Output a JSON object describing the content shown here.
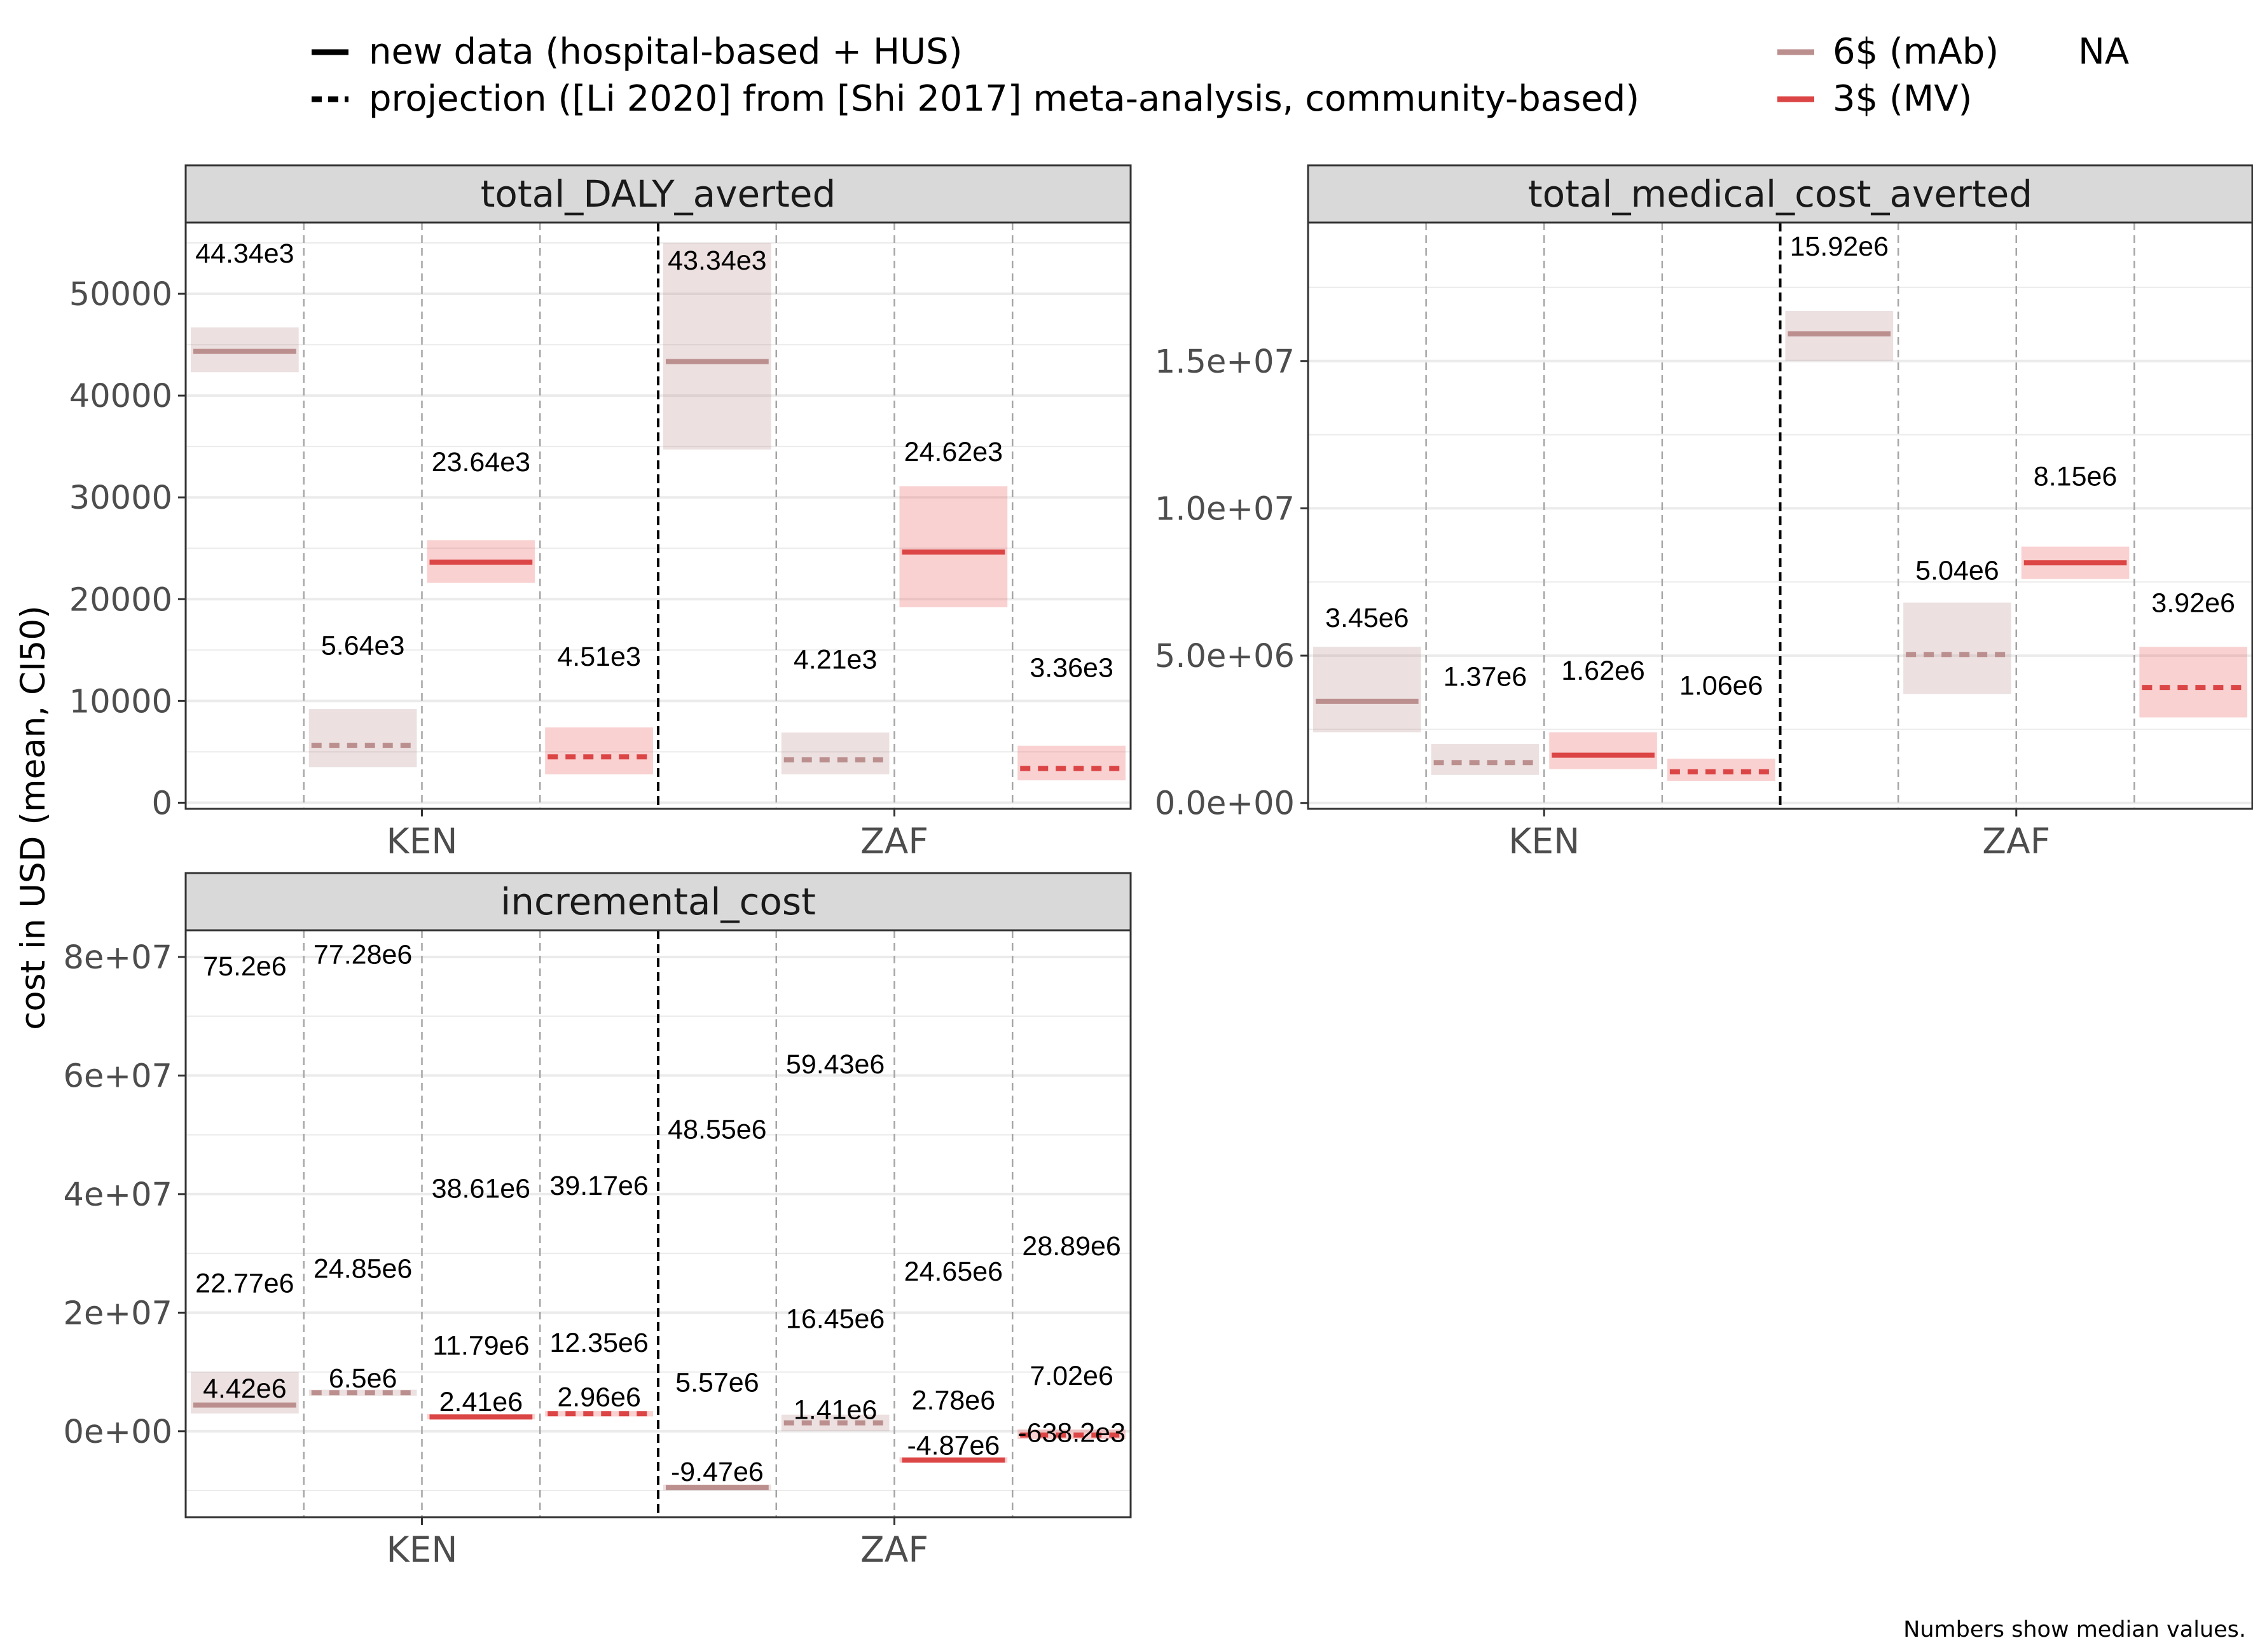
{
  "legend": {
    "linetype": [
      {
        "label": "new data (hospital-based + HUS)",
        "style": "solid"
      },
      {
        "label": "projection ([Li 2020] from [Shi 2017] meta-analysis, community-based)",
        "style": "dashed"
      }
    ],
    "color": [
      {
        "label": "6$ (mAb)",
        "color": "#bc8f8f"
      },
      {
        "label": "3$ (MV)",
        "color": "#dc4545"
      }
    ],
    "extra": "NA"
  },
  "colors": {
    "mAb": "#bc8f8f",
    "MV": "#dc4545",
    "strip_bg": "#d9d9d9",
    "grid": "#ebebeb",
    "divider": "#a6a6a6"
  },
  "ylabel": "cost in USD (mean, CI50)",
  "caption": "Numbers show median values.",
  "chart_data": [
    {
      "type": "crossbar",
      "title": "total_DALY_averted",
      "categories": [
        "KEN",
        "ZAF"
      ],
      "ylim": [
        -600,
        57000
      ],
      "yticks": [
        0,
        10000,
        20000,
        30000,
        40000,
        50000
      ],
      "yticklabels": [
        "0",
        "10000",
        "20000",
        "30000",
        "40000",
        "50000"
      ],
      "grid": true,
      "series": [
        {
          "country": "KEN",
          "slot": 0,
          "group": "mAb",
          "linetype": "solid",
          "mean": 44340,
          "lo": 42300,
          "hi": 46700,
          "label": "44.34e3",
          "label_y": 54000
        },
        {
          "country": "KEN",
          "slot": 1,
          "group": "mAb",
          "linetype": "dashed",
          "mean": 5640,
          "lo": 3500,
          "hi": 9200,
          "label": "5.64e3",
          "label_y": 15500
        },
        {
          "country": "KEN",
          "slot": 2,
          "group": "MV",
          "linetype": "solid",
          "mean": 23640,
          "lo": 21600,
          "hi": 25800,
          "label": "23.64e3",
          "label_y": 33500
        },
        {
          "country": "KEN",
          "slot": 3,
          "group": "MV",
          "linetype": "dashed",
          "mean": 4510,
          "lo": 2800,
          "hi": 7400,
          "label": "4.51e3",
          "label_y": 14400
        },
        {
          "country": "ZAF",
          "slot": 0,
          "group": "mAb",
          "linetype": "solid",
          "mean": 43340,
          "lo": 34700,
          "hi": 55000,
          "label": "43.34e3",
          "label_y": 53300
        },
        {
          "country": "ZAF",
          "slot": 1,
          "group": "mAb",
          "linetype": "dashed",
          "mean": 4210,
          "lo": 2800,
          "hi": 6900,
          "label": "4.21e3",
          "label_y": 14100
        },
        {
          "country": "ZAF",
          "slot": 2,
          "group": "MV",
          "linetype": "solid",
          "mean": 24620,
          "lo": 19200,
          "hi": 31100,
          "label": "24.62e3",
          "label_y": 34500
        },
        {
          "country": "ZAF",
          "slot": 3,
          "group": "MV",
          "linetype": "dashed",
          "mean": 3360,
          "lo": 2200,
          "hi": 5600,
          "label": "3.36e3",
          "label_y": 13300
        }
      ]
    },
    {
      "type": "crossbar",
      "title": "total_medical_cost_averted",
      "categories": [
        "KEN",
        "ZAF"
      ],
      "ylim": [
        -200000,
        19700000
      ],
      "yticks": [
        0,
        5000000,
        10000000,
        15000000
      ],
      "yticklabels": [
        "0.0e+00",
        "5.0e+06",
        "1.0e+07",
        "1.5e+07"
      ],
      "grid": true,
      "series": [
        {
          "country": "KEN",
          "slot": 0,
          "group": "mAb",
          "linetype": "solid",
          "mean": 3450000,
          "lo": 2400000,
          "hi": 5300000,
          "label": "3.45e6",
          "label_y": 6300000
        },
        {
          "country": "KEN",
          "slot": 1,
          "group": "mAb",
          "linetype": "dashed",
          "mean": 1370000,
          "lo": 950000,
          "hi": 2000000,
          "label": "1.37e6",
          "label_y": 4300000
        },
        {
          "country": "KEN",
          "slot": 2,
          "group": "MV",
          "linetype": "solid",
          "mean": 1620000,
          "lo": 1150000,
          "hi": 2400000,
          "label": "1.62e6",
          "label_y": 4500000
        },
        {
          "country": "KEN",
          "slot": 3,
          "group": "MV",
          "linetype": "dashed",
          "mean": 1060000,
          "lo": 750000,
          "hi": 1500000,
          "label": "1.06e6",
          "label_y": 4000000
        },
        {
          "country": "ZAF",
          "slot": 0,
          "group": "mAb",
          "linetype": "solid",
          "mean": 15920000,
          "lo": 15000000,
          "hi": 16700000,
          "label": "15.92e6",
          "label_y": 18900000
        },
        {
          "country": "ZAF",
          "slot": 1,
          "group": "mAb",
          "linetype": "dashed",
          "mean": 5040000,
          "lo": 3700000,
          "hi": 6800000,
          "label": "5.04e6",
          "label_y": 7900000
        },
        {
          "country": "ZAF",
          "slot": 2,
          "group": "MV",
          "linetype": "solid",
          "mean": 8150000,
          "lo": 7600000,
          "hi": 8700000,
          "label": "8.15e6",
          "label_y": 11100000
        },
        {
          "country": "ZAF",
          "slot": 3,
          "group": "MV",
          "linetype": "dashed",
          "mean": 3920000,
          "lo": 2900000,
          "hi": 5300000,
          "label": "3.92e6",
          "label_y": 6800000
        }
      ]
    },
    {
      "type": "crossbar",
      "title": "incremental_cost",
      "categories": [
        "KEN",
        "ZAF"
      ],
      "ylim": [
        -14500000,
        84500000
      ],
      "yticks": [
        0,
        20000000,
        40000000,
        60000000,
        80000000
      ],
      "yticklabels": [
        "0e+00",
        "2e+07",
        "4e+07",
        "6e+07",
        "8e+07"
      ],
      "grid": true,
      "series": [
        {
          "country": "KEN",
          "slot": 0,
          "group": "mAb",
          "linetype": "solid",
          "mean": 4420000,
          "lo": 3000000,
          "hi": 10000000,
          "label": "4.42e6",
          "label_y": 7300000,
          "lo_label": "22.77e6",
          "lo_label_y": 25000000,
          "hi_label": "75.2e6",
          "hi_label_y": 78500000
        },
        {
          "country": "KEN",
          "slot": 1,
          "group": "mAb",
          "linetype": "dashed",
          "mean": 6500000,
          "lo": 6000000,
          "hi": 7000000,
          "label": "6.5e6",
          "label_y": 9000000,
          "lo_label": "24.85e6",
          "lo_label_y": 27500000,
          "hi_label": "77.28e6",
          "hi_label_y": 80500000
        },
        {
          "country": "KEN",
          "slot": 2,
          "group": "MV",
          "linetype": "solid",
          "mean": 2410000,
          "lo": 2000000,
          "hi": 2900000,
          "label": "2.41e6",
          "label_y": 5000000,
          "lo_label": "11.79e6",
          "lo_label_y": 14500000,
          "hi_label": "38.61e6",
          "hi_label_y": 41000000
        },
        {
          "country": "KEN",
          "slot": 3,
          "group": "MV",
          "linetype": "dashed",
          "mean": 2960000,
          "lo": 2500000,
          "hi": 3400000,
          "label": "2.96e6",
          "label_y": 5800000,
          "lo_label": "12.35e6",
          "lo_label_y": 15000000,
          "hi_label": "39.17e6",
          "hi_label_y": 41500000
        },
        {
          "country": "ZAF",
          "slot": 0,
          "group": "mAb",
          "linetype": "solid",
          "mean": -9470000,
          "lo": -10000000,
          "hi": -9000000,
          "label": "-9.47e6",
          "label_y": -6800000,
          "lo_label": "5.57e6",
          "lo_label_y": 8300000,
          "hi_label": "48.55e6",
          "hi_label_y": 51000000
        },
        {
          "country": "ZAF",
          "slot": 1,
          "group": "mAb",
          "linetype": "dashed",
          "mean": 1410000,
          "lo": 0,
          "hi": 2800000,
          "label": "1.41e6",
          "label_y": 3700000,
          "lo_label": "16.45e6",
          "lo_label_y": 19000000,
          "hi_label": "59.43e6",
          "hi_label_y": 62000000
        },
        {
          "country": "ZAF",
          "slot": 2,
          "group": "MV",
          "linetype": "solid",
          "mean": -4870000,
          "lo": -5300000,
          "hi": -4400000,
          "label": "-4.87e6",
          "label_y": -2300000,
          "lo_label": "2.78e6",
          "lo_label_y": 5300000,
          "hi_label": "24.65e6",
          "hi_label_y": 27000000
        },
        {
          "country": "ZAF",
          "slot": 3,
          "group": "MV",
          "linetype": "dashed",
          "mean": -638200,
          "lo": -1300000,
          "hi": 300000,
          "label": "-638.2e3",
          "label_y": -200000,
          "lo_label": "7.02e6",
          "lo_label_y": 9400000,
          "hi_label": "28.89e6",
          "hi_label_y": 31300000
        }
      ]
    }
  ]
}
